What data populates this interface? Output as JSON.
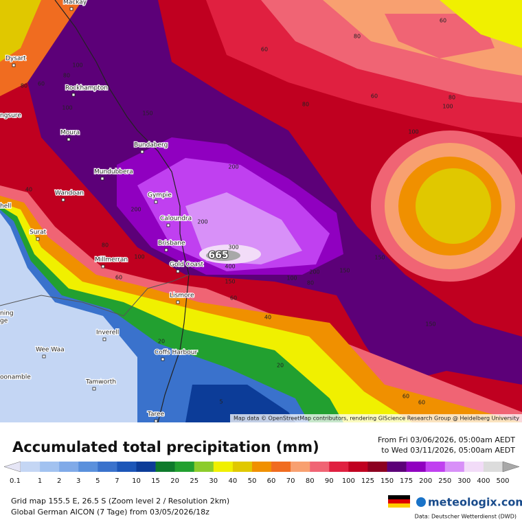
{
  "map": {
    "places": [
      "Mackay",
      "Dysart",
      "Rockhampton",
      "ngsure",
      "Moura",
      "Bundaberg",
      "Mundubbera",
      "Wandoan",
      "Gympie",
      "hell",
      "Caloundra",
      "Surat",
      "Brisbane",
      "Millmerran",
      "Gold Coast",
      "Lismore",
      "ning",
      "ge",
      "Inverell",
      "Wee Waa",
      "Coffs Harbour",
      "oonamble",
      "Tamworth",
      "Taree"
    ],
    "contour_labels": [
      60,
      80,
      60,
      80,
      60,
      80,
      100,
      100,
      200,
      150,
      80,
      60,
      80,
      100,
      100,
      40,
      200,
      200,
      300,
      400,
      150,
      100,
      80,
      200,
      150,
      150,
      60,
      40,
      150,
      80,
      100,
      60,
      20,
      20,
      5,
      60,
      60
    ],
    "peak": 665,
    "attribution": "Map data © OpenStreetMap contributors, rendering GIScience Research Group @ Heidelberg University"
  },
  "header": {
    "title": "Accumulated total precipitation (mm)",
    "period_from": "From Fri 03/06/2026, 05:00am AEDT",
    "period_to": "to Wed 03/11/2026, 05:00am AEDT"
  },
  "legend": {
    "labels": [
      0.1,
      1,
      2,
      3,
      5,
      7,
      10,
      15,
      20,
      25,
      30,
      40,
      50,
      60,
      70,
      80,
      90,
      100,
      125,
      150,
      175,
      200,
      250,
      300,
      400,
      500
    ],
    "colors": [
      "#e6e6f6",
      "#c4d6f4",
      "#a2c2f0",
      "#80aae8",
      "#5a90dc",
      "#3a72cc",
      "#1c56b8",
      "#0c3c98",
      "#0e7a2c",
      "#22a030",
      "#8ccc2c",
      "#f0f000",
      "#e0c800",
      "#f09000",
      "#f06c20",
      "#f8a070",
      "#f06474",
      "#e02040",
      "#c00020",
      "#8c0020",
      "#5c0078",
      "#9000c0",
      "#c040f0",
      "#d890f8",
      "#f2dcf8",
      "#dcdcdc",
      "#a8a8a8"
    ]
  },
  "footer": {
    "grid": "Grid map 155.5 E, 26.5 S (Zoom level 2 / Resolution 2km)",
    "model": "Global German AICON (7 Tage) from 03/05/2026/18z",
    "brand": "meteologix.com",
    "data_source": "Data: Deutscher Wetterdienst (DWD)"
  }
}
